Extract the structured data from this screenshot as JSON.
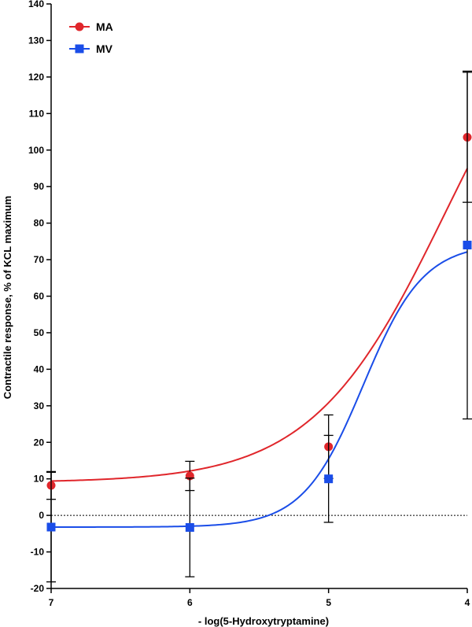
{
  "chart_data": {
    "type": "line",
    "xlabel": "- log(5-Hydroxytryptamine)",
    "ylabel": "Contractile response, % of KCL maximum",
    "x_ticks": [
      7,
      6,
      5,
      4
    ],
    "x_reversed": true,
    "xlim": [
      7,
      4
    ],
    "ylim": [
      -20,
      140
    ],
    "y_ticks": [
      -20,
      -10,
      0,
      10,
      20,
      30,
      40,
      50,
      60,
      70,
      80,
      90,
      100,
      110,
      120,
      130,
      140
    ],
    "reference_line_y": 0,
    "legend_position": "top-left",
    "series": [
      {
        "name": "MA",
        "color": "#e0262b",
        "marker": "circle",
        "x": [
          7,
          6,
          5,
          4
        ],
        "y": [
          8.2,
          10.8,
          18.8,
          103.5
        ],
        "err": [
          3.8,
          4.0,
          8.7,
          17.8
        ],
        "fit": {
          "bottom": 9.0,
          "top": 158,
          "logEC50": 4.15,
          "hill": 0.9
        }
      },
      {
        "name": "MV",
        "color": "#1a4de8",
        "marker": "square",
        "x": [
          7,
          6,
          5,
          4
        ],
        "y": [
          -3.2,
          -3.3,
          10.0,
          74.0
        ],
        "err": [
          15.0,
          13.5,
          11.9,
          47.6
        ],
        "fit": {
          "bottom": -3.2,
          "top": 74.5,
          "logEC50": 4.75,
          "hill": 2.0
        }
      }
    ]
  }
}
